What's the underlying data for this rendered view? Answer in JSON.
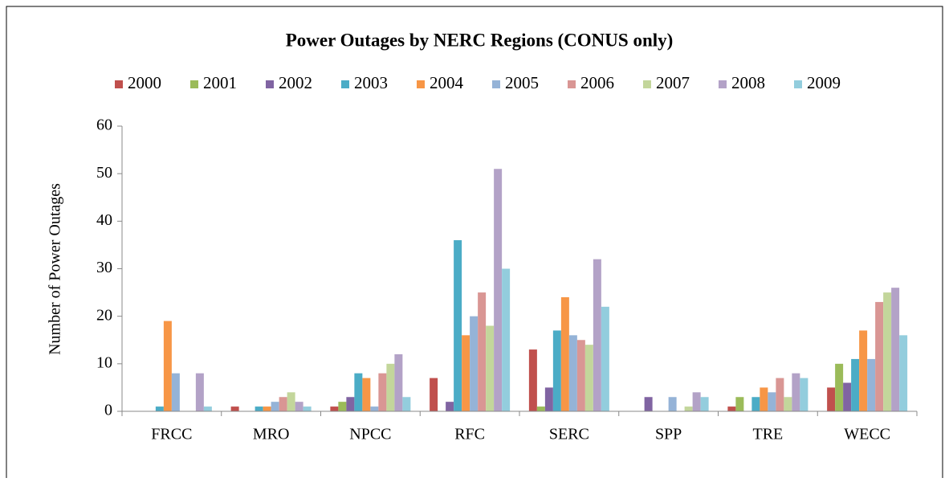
{
  "chart_data": {
    "type": "bar",
    "title": "Power Outages by NERC Regions (CONUS only)",
    "y_label": "Number of Power Outages",
    "categories": [
      "FRCC",
      "MRO",
      "NPCC",
      "RFC",
      "SERC",
      "SPP",
      "TRE",
      "WECC"
    ],
    "series": [
      {
        "name": "2000",
        "color": "#c0504d",
        "values": [
          0,
          1,
          1,
          7,
          13,
          0,
          1,
          5
        ]
      },
      {
        "name": "2001",
        "color": "#9bbb59",
        "values": [
          0,
          0,
          2,
          0,
          1,
          0,
          3,
          10
        ]
      },
      {
        "name": "2002",
        "color": "#8064a2",
        "values": [
          0,
          0,
          3,
          2,
          5,
          3,
          0,
          6
        ]
      },
      {
        "name": "2003",
        "color": "#4bacc6",
        "values": [
          1,
          1,
          8,
          36,
          17,
          0,
          3,
          11
        ]
      },
      {
        "name": "2004",
        "color": "#f79646",
        "values": [
          19,
          1,
          7,
          16,
          24,
          0,
          5,
          17
        ]
      },
      {
        "name": "2005",
        "color": "#95b3d7",
        "values": [
          8,
          2,
          1,
          20,
          16,
          3,
          4,
          11
        ]
      },
      {
        "name": "2006",
        "color": "#d99694",
        "values": [
          0,
          3,
          8,
          25,
          15,
          0,
          7,
          23
        ]
      },
      {
        "name": "2007",
        "color": "#c3d69b",
        "values": [
          0,
          4,
          10,
          18,
          14,
          1,
          3,
          25
        ]
      },
      {
        "name": "2008",
        "color": "#b3a2c7",
        "values": [
          8,
          2,
          12,
          51,
          32,
          4,
          8,
          26
        ]
      },
      {
        "name": "2009",
        "color": "#93cddd",
        "values": [
          1,
          1,
          3,
          30,
          22,
          3,
          7,
          16
        ]
      }
    ],
    "ylim": [
      0,
      60
    ],
    "yticks": [
      0,
      10,
      20,
      30,
      40,
      50,
      60
    ],
    "grid": false,
    "legend": "top"
  }
}
